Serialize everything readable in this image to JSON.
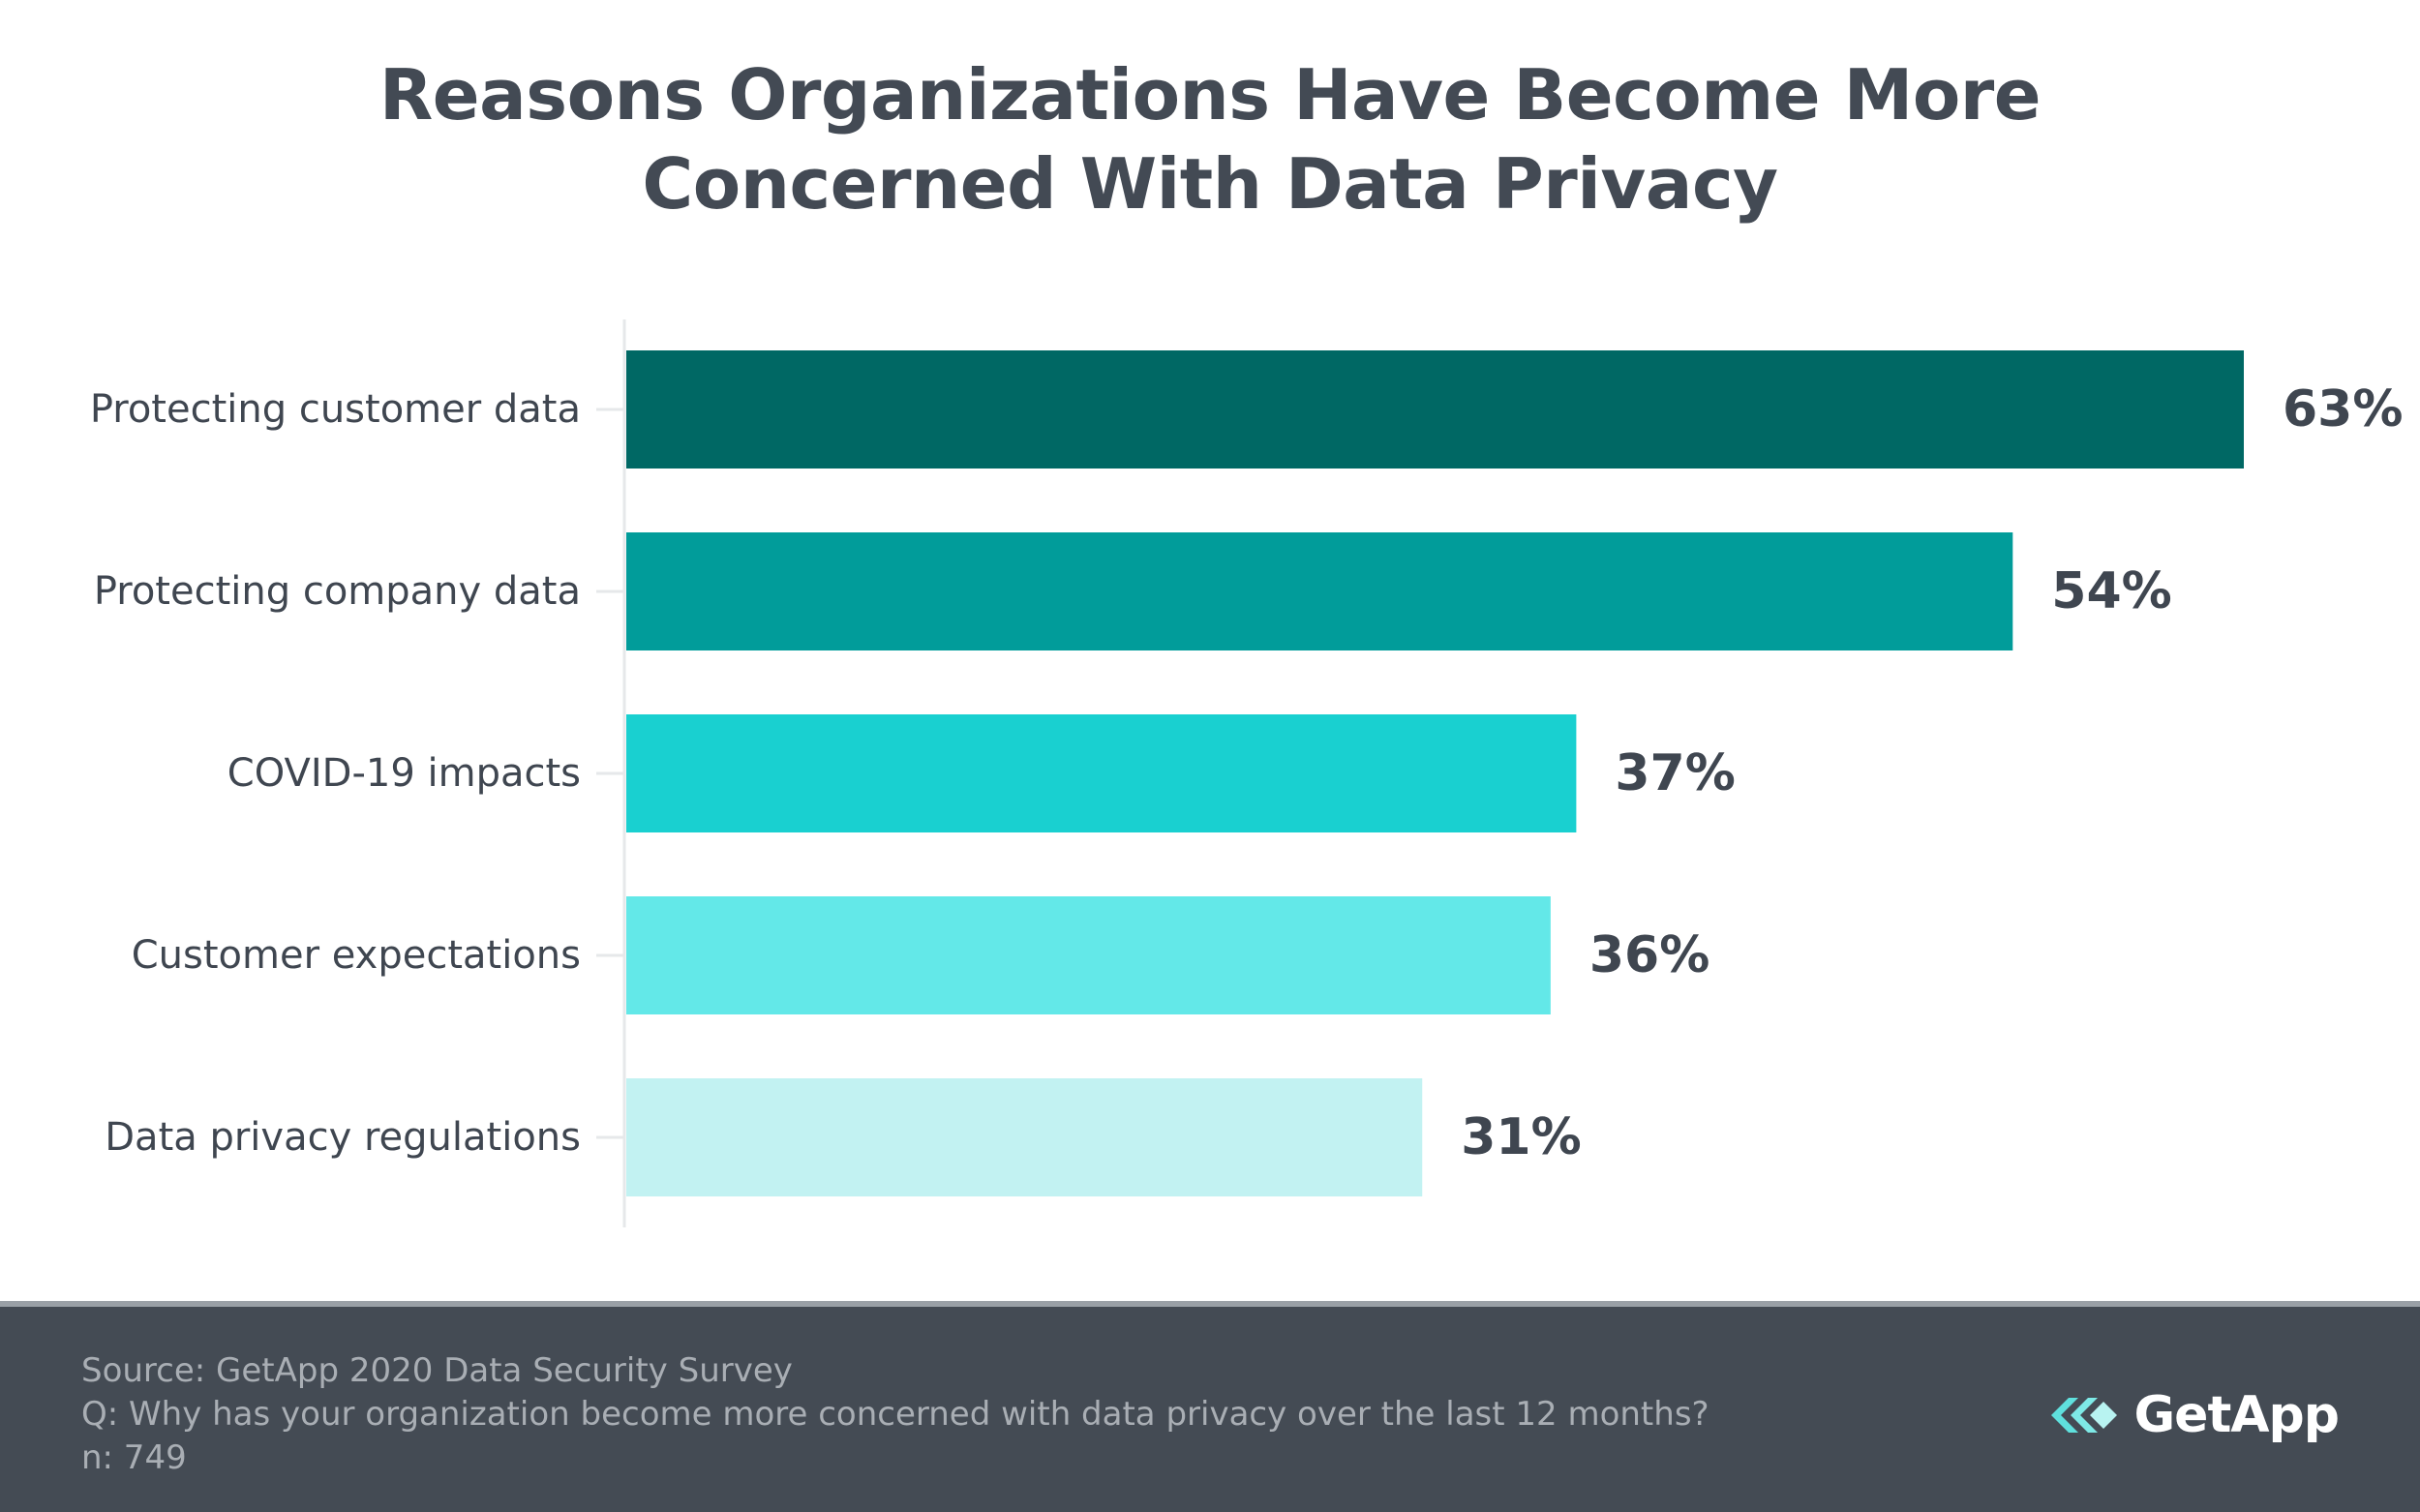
{
  "chart_data": {
    "type": "bar",
    "orientation": "horizontal",
    "title": "Reasons Organizations Have Become More Concerned With Data Privacy",
    "title_lines": [
      "Reasons Organizations Have Become More",
      "Concerned With Data Privacy"
    ],
    "categories": [
      "Protecting customer data",
      "Protecting company data",
      "COVID-19 impacts",
      "Customer expectations",
      "Data privacy regulations"
    ],
    "values": [
      63,
      54,
      37,
      36,
      31
    ],
    "value_labels": [
      "63%",
      "54%",
      "37%",
      "36%",
      "31%"
    ],
    "bar_colors": [
      "#006864",
      "#019c9a",
      "#19d0d0",
      "#63e8e8",
      "#c2f2f2"
    ],
    "xlim": [
      0,
      63
    ],
    "xlabel": "",
    "ylabel": "",
    "grid": false,
    "legend": "none"
  },
  "footer": {
    "source": "Source: GetApp 2020 Data Security Survey",
    "question": "Q: Why has your organization become more concerned with data privacy over the last 12 months?",
    "n": "n: 749"
  },
  "brand": {
    "name": "GetApp",
    "icon": "getapp-chevrons-icon"
  },
  "colors": {
    "title": "#434a54",
    "footer_bg": "#444b54",
    "footer_text": "#a9aeb4",
    "logo_mark": "#5fe0dd"
  }
}
